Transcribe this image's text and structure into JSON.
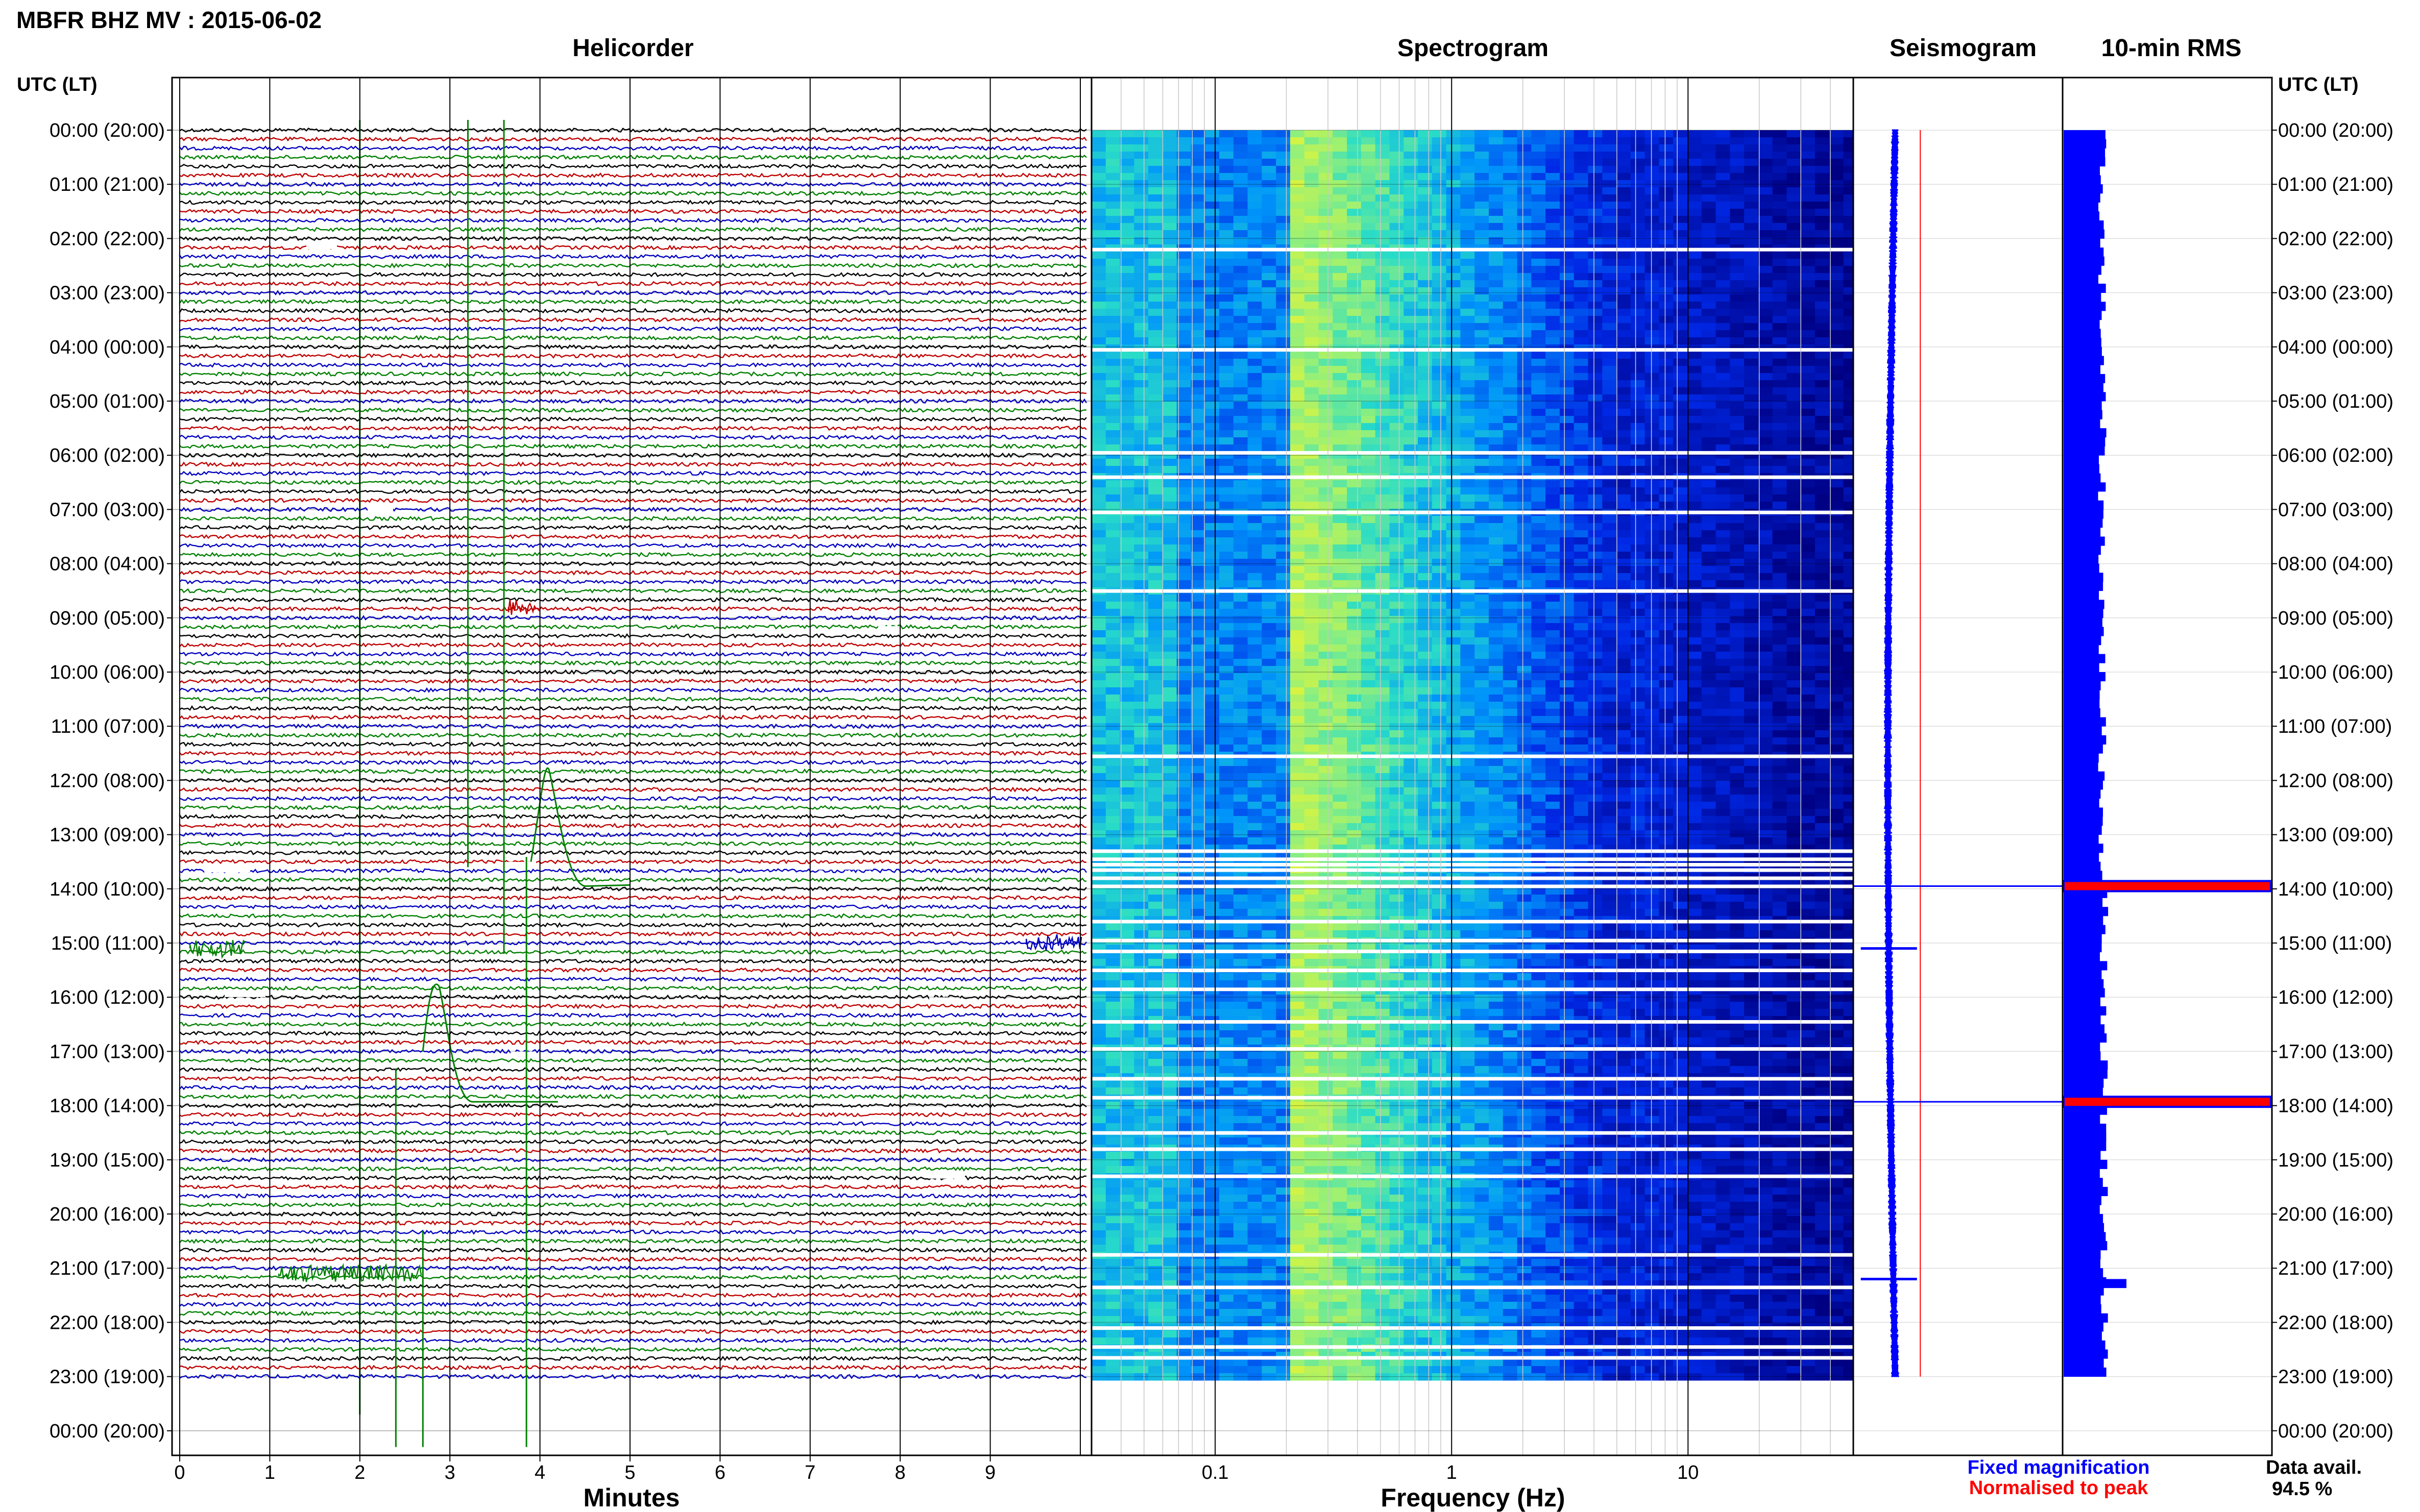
{
  "title": "MBFR BHZ MV : 2015-06-02",
  "colors": {
    "trace_cycle": [
      "#000000",
      "#c00000",
      "#0000c0",
      "#008000"
    ],
    "fixed": "#0000ff",
    "normalised": "#ff0000",
    "grid": "#bbbbbb",
    "spectrogram_low": "#00008b",
    "spectrogram_high": "#f0f000"
  },
  "chart_data": [
    {
      "type": "line",
      "name": "helicorder",
      "title": "Helicorder",
      "xlabel": "Minutes",
      "ylabel": "UTC (LT)",
      "x_ticks": [
        "0",
        "1",
        "2",
        "3",
        "4",
        "5",
        "6",
        "7",
        "8",
        "9"
      ],
      "xlim": [
        0,
        10
      ],
      "y_ticks": [
        "00:00 (20:00)",
        "01:00 (21:00)",
        "02:00 (22:00)",
        "03:00 (23:00)",
        "04:00 (00:00)",
        "05:00 (01:00)",
        "06:00 (02:00)",
        "07:00 (03:00)",
        "08:00 (04:00)",
        "09:00 (05:00)",
        "10:00 (06:00)",
        "11:00 (07:00)",
        "12:00 (08:00)",
        "13:00 (09:00)",
        "14:00 (10:00)",
        "15:00 (11:00)",
        "16:00 (12:00)",
        "17:00 (13:00)",
        "18:00 (14:00)",
        "19:00 (15:00)",
        "20:00 (16:00)",
        "21:00 (17:00)",
        "22:00 (18:00)",
        "23:00 (19:00)",
        "00:00 (20:00)"
      ],
      "lines_per_hour": 6,
      "traces_hours": 23,
      "grid": true
    },
    {
      "type": "heatmap",
      "name": "spectrogram",
      "title": "Spectrogram",
      "xlabel": "Frequency (Hz)",
      "x_scale": "log",
      "xlim": [
        0.03,
        50
      ],
      "x_ticks": [
        "0.1",
        "1",
        "10"
      ],
      "bright_band_hz": [
        0.2,
        0.6
      ],
      "gap_rows_hours": [
        2.2,
        4.05,
        5.95,
        6.4,
        7.05,
        8.5,
        11.55,
        13.3,
        13.45,
        13.55,
        13.65,
        13.8,
        13.95,
        14.6,
        14.95,
        15.15,
        15.5,
        15.85,
        16.45,
        16.95,
        17.5,
        17.85,
        18.5,
        18.8,
        19.3,
        20.75,
        21.35,
        22.1,
        22.45,
        22.65
      ]
    },
    {
      "type": "line",
      "name": "seismogram",
      "title": "Seismogram",
      "spikes_hours": [
        13.95,
        17.93
      ],
      "burst_hours": [
        15.1,
        21.2
      ]
    },
    {
      "type": "bar",
      "name": "rms",
      "title": "10-min RMS",
      "legend": [
        "Fixed magnification",
        "Normalised to peak"
      ],
      "peaks_hours": [
        13.95,
        17.93
      ],
      "baseline_relative": 0.2
    }
  ],
  "legend": {
    "fixed": "Fixed magnification",
    "normalised": "Normalised to peak"
  },
  "data_availability": {
    "label": "Data avail.",
    "value": "94.5 %"
  }
}
